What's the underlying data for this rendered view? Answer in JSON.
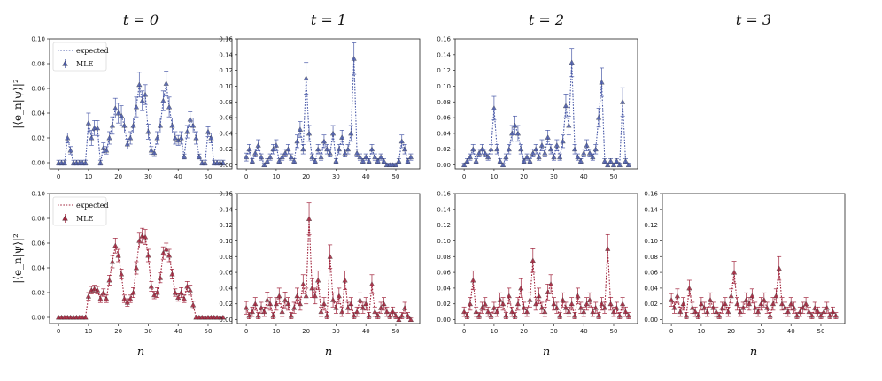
{
  "figure": {
    "column_titles": [
      "t = 0",
      "t = 1",
      "t = 2",
      "t = 3"
    ],
    "xlabel": "n",
    "ylabel": "|⟨e_n|ψ⟩|²",
    "colors": {
      "top": "#4a5aa8",
      "bottom": "#a0243c",
      "axis": "#222222"
    }
  },
  "chart_data": [
    {
      "type": "scatter",
      "row": 0,
      "col": 0,
      "legend": [
        "expected",
        "MLE"
      ],
      "xlim": [
        -3,
        58
      ],
      "ylim": [
        -0.005,
        0.1
      ],
      "xticks": [
        "0",
        "10",
        "20",
        "30",
        "40",
        "50"
      ],
      "yticks": [
        "0.00",
        "0.02",
        "0.04",
        "0.06",
        "0.08",
        "0.10"
      ],
      "x": [
        0,
        1,
        2,
        3,
        4,
        5,
        6,
        7,
        8,
        9,
        10,
        11,
        12,
        13,
        14,
        15,
        16,
        17,
        18,
        19,
        20,
        21,
        22,
        23,
        24,
        25,
        26,
        27,
        28,
        29,
        30,
        31,
        32,
        33,
        34,
        35,
        36,
        37,
        38,
        39,
        40,
        41,
        42,
        43,
        44,
        45,
        46,
        47,
        48,
        49,
        50,
        51,
        52,
        53,
        54,
        55
      ],
      "values": [
        0,
        0,
        0,
        0.02,
        0.01,
        0,
        0,
        0,
        0,
        0,
        0.032,
        0.02,
        0.028,
        0.028,
        0,
        0.012,
        0.01,
        0.02,
        0.03,
        0.044,
        0.04,
        0.038,
        0.03,
        0.015,
        0.02,
        0.03,
        0.045,
        0.063,
        0.05,
        0.055,
        0.025,
        0.01,
        0.008,
        0.02,
        0.03,
        0.05,
        0.064,
        0.045,
        0.03,
        0.02,
        0.018,
        0.02,
        0.005,
        0.025,
        0.035,
        0.03,
        0.02,
        0.005,
        0,
        0,
        0.025,
        0.02,
        0,
        0,
        0,
        0
      ],
      "errors": [
        0.002,
        0.002,
        0.002,
        0.004,
        0.003,
        0.002,
        0.002,
        0.002,
        0.002,
        0.002,
        0.008,
        0.006,
        0.006,
        0.006,
        0.002,
        0.004,
        0.003,
        0.005,
        0.007,
        0.008,
        0.008,
        0.008,
        0.006,
        0.004,
        0.005,
        0.006,
        0.008,
        0.01,
        0.008,
        0.008,
        0.006,
        0.003,
        0.003,
        0.005,
        0.006,
        0.008,
        0.01,
        0.008,
        0.006,
        0.005,
        0.004,
        0.005,
        0.002,
        0.005,
        0.006,
        0.006,
        0.005,
        0.002,
        0.002,
        0.002,
        0.004,
        0.004,
        0.002,
        0.002,
        0.002,
        0.002
      ]
    },
    {
      "type": "scatter",
      "row": 0,
      "col": 1,
      "xlim": [
        -3,
        58
      ],
      "ylim": [
        -0.005,
        0.16
      ],
      "xticks": [
        "0",
        "10",
        "20",
        "30",
        "40",
        "50"
      ],
      "yticks": [
        "0.00",
        "0.02",
        "0.04",
        "0.06",
        "0.08",
        "0.10",
        "0.12",
        "0.14",
        "0.16"
      ],
      "x": [
        0,
        1,
        2,
        3,
        4,
        5,
        6,
        7,
        8,
        9,
        10,
        11,
        12,
        13,
        14,
        15,
        16,
        17,
        18,
        19,
        20,
        21,
        22,
        23,
        24,
        25,
        26,
        27,
        28,
        29,
        30,
        31,
        32,
        33,
        34,
        35,
        36,
        37,
        38,
        39,
        40,
        41,
        42,
        43,
        44,
        45,
        46,
        47,
        48,
        49,
        50,
        51,
        52,
        53,
        54,
        55
      ],
      "values": [
        0.01,
        0.02,
        0.005,
        0.015,
        0.025,
        0.01,
        0,
        0.005,
        0.01,
        0.02,
        0.025,
        0.005,
        0.01,
        0.015,
        0.02,
        0.01,
        0.005,
        0.03,
        0.045,
        0.02,
        0.11,
        0.04,
        0.01,
        0.005,
        0.02,
        0.01,
        0.03,
        0.02,
        0.015,
        0.04,
        0.005,
        0.02,
        0.035,
        0.015,
        0.02,
        0.04,
        0.135,
        0.015,
        0.01,
        0.005,
        0.01,
        0.005,
        0.02,
        0.01,
        0.005,
        0.01,
        0.005,
        0,
        0,
        0,
        0,
        0.005,
        0.03,
        0.02,
        0.005,
        0.01
      ],
      "errors": [
        0.005,
        0.006,
        0.003,
        0.005,
        0.007,
        0.004,
        0.002,
        0.003,
        0.004,
        0.006,
        0.007,
        0.003,
        0.004,
        0.005,
        0.006,
        0.004,
        0.003,
        0.008,
        0.01,
        0.006,
        0.02,
        0.01,
        0.004,
        0.003,
        0.006,
        0.004,
        0.008,
        0.006,
        0.005,
        0.01,
        0.003,
        0.006,
        0.009,
        0.005,
        0.006,
        0.01,
        0.02,
        0.005,
        0.004,
        0.003,
        0.004,
        0.003,
        0.006,
        0.004,
        0.003,
        0.004,
        0.003,
        0.002,
        0.002,
        0.002,
        0.002,
        0.003,
        0.008,
        0.006,
        0.003,
        0.004
      ]
    },
    {
      "type": "scatter",
      "row": 0,
      "col": 2,
      "xlim": [
        -3,
        58
      ],
      "ylim": [
        -0.005,
        0.16
      ],
      "xticks": [
        "0",
        "10",
        "20",
        "30",
        "40",
        "50"
      ],
      "yticks": [
        "0.00",
        "0.02",
        "0.04",
        "0.06",
        "0.08",
        "0.10",
        "0.12",
        "0.14",
        "0.16"
      ],
      "x": [
        0,
        1,
        2,
        3,
        4,
        5,
        6,
        7,
        8,
        9,
        10,
        11,
        12,
        13,
        14,
        15,
        16,
        17,
        18,
        19,
        20,
        21,
        22,
        23,
        24,
        25,
        26,
        27,
        28,
        29,
        30,
        31,
        32,
        33,
        34,
        35,
        36,
        37,
        38,
        39,
        40,
        41,
        42,
        43,
        44,
        45,
        46,
        47,
        48,
        49,
        50,
        51,
        52,
        53,
        54,
        55
      ],
      "values": [
        0,
        0.005,
        0.01,
        0.02,
        0.005,
        0.015,
        0.02,
        0.015,
        0.01,
        0.02,
        0.072,
        0.02,
        0.005,
        0,
        0.01,
        0.02,
        0.04,
        0.05,
        0.04,
        0.02,
        0.005,
        0.01,
        0.005,
        0.015,
        0.02,
        0.01,
        0.025,
        0.015,
        0.035,
        0.02,
        0.01,
        0.025,
        0.01,
        0.03,
        0.075,
        0.05,
        0.13,
        0.02,
        0.01,
        0.005,
        0.015,
        0.025,
        0.015,
        0.01,
        0.02,
        0.06,
        0.105,
        0.005,
        0,
        0.005,
        0,
        0.005,
        0,
        0.08,
        0.005,
        0
      ],
      "errors": [
        0.002,
        0.003,
        0.004,
        0.006,
        0.003,
        0.005,
        0.006,
        0.005,
        0.004,
        0.006,
        0.015,
        0.006,
        0.003,
        0.002,
        0.004,
        0.006,
        0.01,
        0.012,
        0.01,
        0.006,
        0.003,
        0.004,
        0.003,
        0.005,
        0.006,
        0.004,
        0.007,
        0.005,
        0.009,
        0.006,
        0.004,
        0.007,
        0.004,
        0.008,
        0.015,
        0.012,
        0.018,
        0.006,
        0.004,
        0.003,
        0.005,
        0.007,
        0.005,
        0.004,
        0.006,
        0.012,
        0.018,
        0.003,
        0.002,
        0.003,
        0.002,
        0.003,
        0.002,
        0.018,
        0.003,
        0.002
      ]
    },
    {
      "type": "scatter",
      "row": 1,
      "col": 0,
      "legend": [
        "expected",
        "MLE"
      ],
      "xlim": [
        -3,
        58
      ],
      "ylim": [
        -0.005,
        0.1
      ],
      "xticks": [
        "0",
        "10",
        "20",
        "30",
        "40",
        "50"
      ],
      "yticks": [
        "0.00",
        "0.02",
        "0.04",
        "0.06",
        "0.08",
        "0.10"
      ],
      "x": [
        0,
        1,
        2,
        3,
        4,
        5,
        6,
        7,
        8,
        9,
        10,
        11,
        12,
        13,
        14,
        15,
        16,
        17,
        18,
        19,
        20,
        21,
        22,
        23,
        24,
        25,
        26,
        27,
        28,
        29,
        30,
        31,
        32,
        33,
        34,
        35,
        36,
        37,
        38,
        39,
        40,
        41,
        42,
        43,
        44,
        45,
        46,
        47,
        48,
        49,
        50,
        51,
        52,
        53,
        54,
        55
      ],
      "values": [
        0,
        0,
        0,
        0,
        0,
        0,
        0,
        0,
        0,
        0,
        0.017,
        0.022,
        0.023,
        0.022,
        0.015,
        0.02,
        0.015,
        0.03,
        0.045,
        0.058,
        0.05,
        0.035,
        0.015,
        0.012,
        0.015,
        0.02,
        0.04,
        0.062,
        0.066,
        0.065,
        0.05,
        0.025,
        0.018,
        0.02,
        0.032,
        0.052,
        0.055,
        0.05,
        0.035,
        0.02,
        0.016,
        0.02,
        0.015,
        0.025,
        0.022,
        0.01,
        0,
        0,
        0,
        0,
        0,
        0,
        0,
        0,
        0,
        0
      ],
      "errors": [
        0.001,
        0.001,
        0.001,
        0.001,
        0.001,
        0.001,
        0.001,
        0.001,
        0.001,
        0.001,
        0.003,
        0.003,
        0.003,
        0.003,
        0.003,
        0.003,
        0.003,
        0.004,
        0.005,
        0.006,
        0.005,
        0.004,
        0.003,
        0.003,
        0.003,
        0.004,
        0.005,
        0.006,
        0.006,
        0.006,
        0.005,
        0.004,
        0.003,
        0.004,
        0.004,
        0.005,
        0.005,
        0.005,
        0.004,
        0.003,
        0.003,
        0.004,
        0.003,
        0.004,
        0.004,
        0.003,
        0.001,
        0.001,
        0.001,
        0.001,
        0.001,
        0.001,
        0.001,
        0.001,
        0.001,
        0.001
      ]
    },
    {
      "type": "scatter",
      "row": 1,
      "col": 1,
      "xlim": [
        -3,
        58
      ],
      "ylim": [
        -0.005,
        0.16
      ],
      "xticks": [
        "0",
        "10",
        "20",
        "30",
        "40",
        "50"
      ],
      "yticks": [
        "0.00",
        "0.02",
        "0.04",
        "0.06",
        "0.08",
        "0.10",
        "0.12",
        "0.14",
        "0.16"
      ],
      "x": [
        0,
        1,
        2,
        3,
        4,
        5,
        6,
        7,
        8,
        9,
        10,
        11,
        12,
        13,
        14,
        15,
        16,
        17,
        18,
        19,
        20,
        21,
        22,
        23,
        24,
        25,
        26,
        27,
        28,
        29,
        30,
        31,
        32,
        33,
        34,
        35,
        36,
        37,
        38,
        39,
        40,
        41,
        42,
        43,
        44,
        45,
        46,
        47,
        48,
        49,
        50,
        51,
        52,
        53,
        54,
        55
      ],
      "values": [
        0.015,
        0.005,
        0.01,
        0.02,
        0.005,
        0.015,
        0.01,
        0.025,
        0.02,
        0.005,
        0.02,
        0.03,
        0.01,
        0.025,
        0.02,
        0.005,
        0.015,
        0.03,
        0.02,
        0.045,
        0.03,
        0.128,
        0.04,
        0.03,
        0.05,
        0.01,
        0.02,
        0.005,
        0.08,
        0.025,
        0.015,
        0.03,
        0.01,
        0.05,
        0.015,
        0.02,
        0.005,
        0.01,
        0.025,
        0.015,
        0.02,
        0.005,
        0.045,
        0.01,
        0.005,
        0.015,
        0.02,
        0.01,
        0.005,
        0.01,
        0.005,
        0,
        0.005,
        0.015,
        0.005,
        0
      ],
      "errors": [
        0.008,
        0.004,
        0.006,
        0.008,
        0.004,
        0.007,
        0.006,
        0.01,
        0.008,
        0.004,
        0.008,
        0.01,
        0.006,
        0.01,
        0.008,
        0.004,
        0.007,
        0.01,
        0.008,
        0.012,
        0.01,
        0.02,
        0.012,
        0.01,
        0.012,
        0.006,
        0.008,
        0.004,
        0.015,
        0.009,
        0.007,
        0.01,
        0.006,
        0.012,
        0.007,
        0.008,
        0.004,
        0.006,
        0.009,
        0.007,
        0.008,
        0.004,
        0.012,
        0.006,
        0.004,
        0.007,
        0.008,
        0.006,
        0.004,
        0.006,
        0.004,
        0.002,
        0.004,
        0.007,
        0.004,
        0.002
      ]
    },
    {
      "type": "scatter",
      "row": 1,
      "col": 2,
      "xlim": [
        -3,
        58
      ],
      "ylim": [
        -0.005,
        0.16
      ],
      "xticks": [
        "0",
        "10",
        "20",
        "30",
        "40",
        "50"
      ],
      "yticks": [
        "0.00",
        "0.02",
        "0.04",
        "0.06",
        "0.08",
        "0.10",
        "0.12",
        "0.14",
        "0.16"
      ],
      "x": [
        0,
        1,
        2,
        3,
        4,
        5,
        6,
        7,
        8,
        9,
        10,
        11,
        12,
        13,
        14,
        15,
        16,
        17,
        18,
        19,
        20,
        21,
        22,
        23,
        24,
        25,
        26,
        27,
        28,
        29,
        30,
        31,
        32,
        33,
        34,
        35,
        36,
        37,
        38,
        39,
        40,
        41,
        42,
        43,
        44,
        45,
        46,
        47,
        48,
        49,
        50,
        51,
        52,
        53,
        54,
        55
      ],
      "values": [
        0.01,
        0.005,
        0.02,
        0.05,
        0.01,
        0.005,
        0.015,
        0.02,
        0.01,
        0.005,
        0.015,
        0.01,
        0.025,
        0.02,
        0.005,
        0.03,
        0.01,
        0.005,
        0.02,
        0.04,
        0.015,
        0.01,
        0.025,
        0.075,
        0.02,
        0.03,
        0.015,
        0.01,
        0.035,
        0.045,
        0.02,
        0.015,
        0.005,
        0.025,
        0.015,
        0.01,
        0.02,
        0.005,
        0.03,
        0.015,
        0.01,
        0.02,
        0.025,
        0.01,
        0.015,
        0.005,
        0.02,
        0.015,
        0.09,
        0.02,
        0.01,
        0.015,
        0.005,
        0.02,
        0.01,
        0.005
      ],
      "errors": [
        0.006,
        0.004,
        0.008,
        0.012,
        0.006,
        0.004,
        0.007,
        0.008,
        0.006,
        0.004,
        0.007,
        0.006,
        0.009,
        0.008,
        0.004,
        0.01,
        0.006,
        0.004,
        0.008,
        0.012,
        0.007,
        0.006,
        0.009,
        0.015,
        0.008,
        0.01,
        0.007,
        0.006,
        0.01,
        0.012,
        0.008,
        0.007,
        0.004,
        0.009,
        0.007,
        0.006,
        0.008,
        0.004,
        0.01,
        0.007,
        0.006,
        0.008,
        0.009,
        0.006,
        0.007,
        0.004,
        0.008,
        0.007,
        0.018,
        0.008,
        0.006,
        0.007,
        0.004,
        0.008,
        0.006,
        0.004
      ]
    },
    {
      "type": "scatter",
      "row": 1,
      "col": 3,
      "xlim": [
        -3,
        58
      ],
      "ylim": [
        -0.005,
        0.16
      ],
      "xticks": [
        "0",
        "10",
        "20",
        "30",
        "40",
        "50"
      ],
      "yticks": [
        "0.00",
        "0.02",
        "0.04",
        "0.06",
        "0.08",
        "0.10",
        "0.12",
        "0.14",
        "0.16"
      ],
      "x": [
        0,
        1,
        2,
        3,
        4,
        5,
        6,
        7,
        8,
        9,
        10,
        11,
        12,
        13,
        14,
        15,
        16,
        17,
        18,
        19,
        20,
        21,
        22,
        23,
        24,
        25,
        26,
        27,
        28,
        29,
        30,
        31,
        32,
        33,
        34,
        35,
        36,
        37,
        38,
        39,
        40,
        41,
        42,
        43,
        44,
        45,
        46,
        47,
        48,
        49,
        50,
        51,
        52,
        53,
        54,
        55
      ],
      "values": [
        0.025,
        0.015,
        0.03,
        0.01,
        0.02,
        0.005,
        0.04,
        0.015,
        0.01,
        0.005,
        0.02,
        0.015,
        0.01,
        0.025,
        0.015,
        0.01,
        0.005,
        0.015,
        0.02,
        0.01,
        0.03,
        0.06,
        0.02,
        0.01,
        0.015,
        0.025,
        0.02,
        0.03,
        0.015,
        0.01,
        0.02,
        0.025,
        0.015,
        0.005,
        0.02,
        0.03,
        0.065,
        0.02,
        0.015,
        0.01,
        0.02,
        0.015,
        0.005,
        0.01,
        0.015,
        0.02,
        0.01,
        0.005,
        0.015,
        0.01,
        0.005,
        0.01,
        0.015,
        0.005,
        0.01,
        0.005
      ],
      "errors": [
        0.008,
        0.007,
        0.009,
        0.006,
        0.008,
        0.004,
        0.01,
        0.007,
        0.006,
        0.004,
        0.008,
        0.007,
        0.006,
        0.009,
        0.007,
        0.006,
        0.004,
        0.007,
        0.008,
        0.006,
        0.009,
        0.014,
        0.008,
        0.006,
        0.007,
        0.009,
        0.008,
        0.009,
        0.007,
        0.006,
        0.008,
        0.009,
        0.007,
        0.004,
        0.008,
        0.009,
        0.015,
        0.008,
        0.007,
        0.006,
        0.008,
        0.007,
        0.004,
        0.006,
        0.007,
        0.008,
        0.006,
        0.004,
        0.007,
        0.006,
        0.004,
        0.006,
        0.007,
        0.004,
        0.006,
        0.004
      ]
    }
  ]
}
